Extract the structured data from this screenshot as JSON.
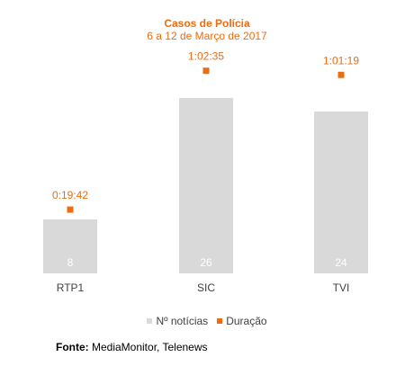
{
  "colors": {
    "bar": "#d9d9d9",
    "marker": "#ee6c11",
    "title": "#ee6c11",
    "bar_label": "#ffffff",
    "axis_text": "#404040"
  },
  "chart_data": {
    "type": "bar",
    "title": "Casos de Polícia",
    "subtitle": "6 a 12 de Março de 2017",
    "categories": [
      "RTP1",
      "SIC",
      "TVI"
    ],
    "series": [
      {
        "name": "Nº notícias",
        "type": "bar",
        "values": [
          8,
          26,
          24
        ]
      },
      {
        "name": "Duração",
        "type": "marker",
        "values": [
          "0:19:42",
          "1:02:35",
          "1:01:19"
        ],
        "seconds": [
          1182,
          3755,
          3679
        ]
      }
    ],
    "ylim": [
      0,
      32
    ],
    "grid": false,
    "legend_position": "bottom"
  },
  "source": {
    "label": "Fonte:",
    "text": " MediaMonitor, Telenews"
  }
}
